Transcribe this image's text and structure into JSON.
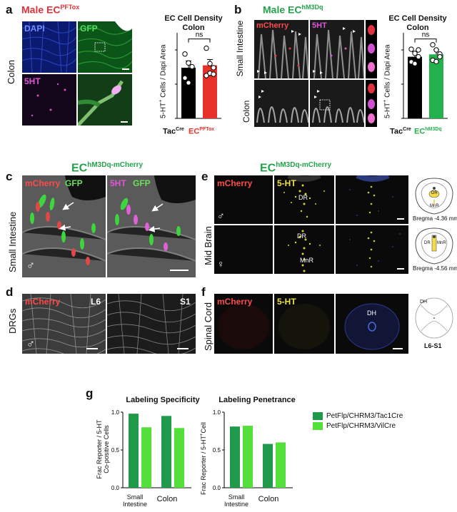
{
  "a": {
    "panel": "a",
    "title": "Male EC",
    "title_sup": "PFTox",
    "side_label": "Colon",
    "stains": [
      "DAPI",
      "GFP",
      "5HT"
    ],
    "chart": {
      "title1": "EC Cell Density",
      "title2": "Colon",
      "ylabel_pre": "5-HT",
      "ylabel_post": " Cells / Dapi Area",
      "sig": "ns",
      "cat1": "Tac",
      "cat1_sup": "Cre",
      "cat2": "EC",
      "cat2_sup": "PFTox"
    }
  },
  "b": {
    "panel": "b",
    "title": "Male EC",
    "title_sup": "hM3Dq",
    "side_top": "Small Intestine",
    "side_bottom": "Colon",
    "stains": [
      "mCherry",
      "5HT"
    ],
    "chart": {
      "title1": "EC Cell Density",
      "title2": "Colon",
      "ylabel_pre": "5-HT",
      "ylabel_post": " Cells / Dapi Area",
      "sig": "ns",
      "cat1": "Tac",
      "cat1_sup": "Cre",
      "cat2": "EC",
      "cat2_sup": "hM3Dq"
    }
  },
  "cf_header": {
    "title": "EC",
    "sup": "hM3Dq-mCherry"
  },
  "c": {
    "panel": "c",
    "side": "Small Intestine",
    "stain1": "mCherry",
    "stain2": "GFP",
    "stain3": "5HT",
    "stain4": "GFP",
    "sex": "♂"
  },
  "d": {
    "panel": "d",
    "side": "DRGs",
    "stain": "mCherry",
    "lvl1": "L6",
    "lvl2": "S1",
    "sex": "♂"
  },
  "e": {
    "panel": "e",
    "side": "Mid Brain",
    "stain1": "mCherry",
    "stain2": "5-HT",
    "dr": "DR",
    "mnr": "MnR",
    "atlas_dr1": "DR",
    "atlas_mnr1": "MnR",
    "bregma1": "Bregma -4.36 mm",
    "atlas_dr2": "DR",
    "atlas_mnr2": "MnR",
    "bregma2": "Bregma -4.56 mm",
    "sex_m": "♂",
    "sex_f": "♀"
  },
  "f": {
    "panel": "f",
    "side": "Spinal Cord",
    "stain1": "mCherry",
    "stain2": "5-HT",
    "dh": "DH",
    "atlas_dh": "DH",
    "atlas_lvl": "L6-S1"
  },
  "g": {
    "panel": "g",
    "legend": [
      "PetFlp/CHRM3/Tac1Cre",
      "PetFlp/CHRM3/VilCre"
    ],
    "colors": {
      "dark": "#1f9a4a",
      "light": "#54e03a"
    },
    "spec_title": "Labeling Specificity",
    "spec_ylabel1": "Frac Reporter / 5-HT",
    "spec_ylabel2": "Co-positive Cells",
    "pen_title": "Labeling Penetrance",
    "pen_ylabel_pre": "Frac Reporter / 5-HT",
    "pen_ylabel_post": "Cell",
    "cat_si_1": "Small",
    "cat_si_2": "Intestine",
    "cat_colon": "Colon"
  },
  "chart_data": [
    {
      "type": "bar",
      "title": "EC Cell Density Colon",
      "categories": [
        "TacCre",
        "ECPFTox"
      ],
      "values": [
        148,
        155
      ],
      "errors": [
        20,
        17
      ],
      "points": [
        [
          188,
          162,
          151,
          118,
          104
        ],
        [
          205,
          160,
          148,
          125,
          132,
          129
        ]
      ],
      "colors": [
        "#000000",
        "#e8302a"
      ],
      "ylabel": "5-HT+ Cells / Dapi Area"
    },
    {
      "type": "bar",
      "title": "EC Cell Density Colon",
      "categories": [
        "TacCre",
        "EChM3Dq"
      ],
      "values": [
        180,
        187
      ],
      "errors": [
        15,
        14
      ],
      "points": [
        [
          202,
          190,
          180,
          165,
          160,
          200
        ],
        [
          215,
          200,
          188,
          170,
          166,
          180
        ]
      ],
      "colors": [
        "#000000",
        "#22b14c"
      ],
      "ylabel": "5-HT+ Cells / Dapi Area"
    },
    {
      "type": "bar",
      "title": "Labeling Specificity",
      "categories": [
        "Small Intestine",
        "Colon"
      ],
      "series": [
        {
          "name": "PetFlp/CHRM3/Tac1Cre",
          "values": [
            0.98,
            0.95
          ]
        },
        {
          "name": "PetFlp/CHRM3/VilCre",
          "values": [
            0.8,
            0.79
          ]
        }
      ],
      "ylim": [
        0,
        1.0
      ],
      "yticks": [
        0.0,
        0.5,
        1.0
      ],
      "ylabel": "Frac Reporter / 5-HT Co-positive Cells"
    },
    {
      "type": "bar",
      "title": "Labeling Penetrance",
      "categories": [
        "Small Intestine",
        "Colon"
      ],
      "series": [
        {
          "name": "PetFlp/CHRM3/Tac1Cre",
          "values": [
            0.81,
            0.58
          ]
        },
        {
          "name": "PetFlp/CHRM3/VilCre",
          "values": [
            0.82,
            0.6
          ]
        }
      ],
      "ylim": [
        0,
        1.0
      ],
      "yticks": [
        0.0,
        0.5,
        1.0
      ],
      "ylabel": "Frac Reporter / 5-HT+ Cell"
    }
  ]
}
